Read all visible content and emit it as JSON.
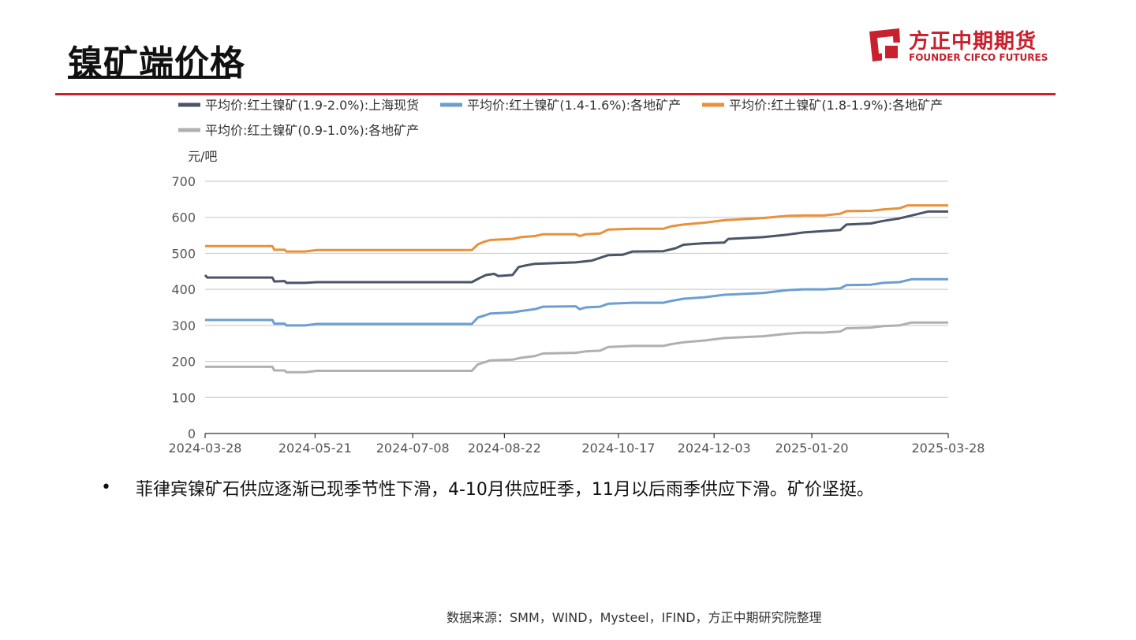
{
  "page": {
    "title": "镍矿端价格"
  },
  "logo": {
    "cn": "方正中期期货",
    "en": "FOUNDER CIFCO FUTURES",
    "color": "#c8202d"
  },
  "chart_data": {
    "type": "line",
    "ylabel": "元/吧",
    "ylim": [
      0,
      700
    ],
    "yticks": [
      0,
      100,
      200,
      300,
      400,
      500,
      600,
      700
    ],
    "xlim": [
      "2024-03-28",
      "2025-03-28"
    ],
    "xticks": [
      "2024-03-28",
      "2024-05-21",
      "2024-07-08",
      "2024-08-22",
      "2024-10-17",
      "2024-12-03",
      "2025-01-20",
      "2025-03-28"
    ],
    "grid": true,
    "legend": "top",
    "series": [
      {
        "name": "平均价:红土镍矿(1.9-2.0%):上海现货",
        "color": "#4a5568",
        "points": [
          [
            "2024-03-28",
            440
          ],
          [
            "2024-03-29",
            433
          ],
          [
            "2024-04-02",
            433
          ],
          [
            "2024-04-30",
            433
          ],
          [
            "2024-05-01",
            422
          ],
          [
            "2024-05-06",
            423
          ],
          [
            "2024-05-07",
            418
          ],
          [
            "2024-05-16",
            418
          ],
          [
            "2024-05-22",
            420
          ],
          [
            "2024-08-06",
            420
          ],
          [
            "2024-08-10",
            432
          ],
          [
            "2024-08-13",
            440
          ],
          [
            "2024-08-17",
            443
          ],
          [
            "2024-08-19",
            437
          ],
          [
            "2024-08-26",
            440
          ],
          [
            "2024-08-29",
            462
          ],
          [
            "2024-09-02",
            467
          ],
          [
            "2024-09-06",
            471
          ],
          [
            "2024-09-26",
            475
          ],
          [
            "2024-10-04",
            480
          ],
          [
            "2024-10-12",
            495
          ],
          [
            "2024-10-19",
            496
          ],
          [
            "2024-10-24",
            505
          ],
          [
            "2024-11-08",
            506
          ],
          [
            "2024-11-14",
            514
          ],
          [
            "2024-11-18",
            524
          ],
          [
            "2024-11-28",
            528
          ],
          [
            "2024-12-08",
            530
          ],
          [
            "2024-12-10",
            540
          ],
          [
            "2024-12-27",
            545
          ],
          [
            "2025-01-08",
            552
          ],
          [
            "2025-01-16",
            558
          ],
          [
            "2025-01-26",
            562
          ],
          [
            "2025-02-03",
            565
          ],
          [
            "2025-02-06",
            580
          ],
          [
            "2025-02-18",
            583
          ],
          [
            "2025-02-24",
            590
          ],
          [
            "2025-03-04",
            597
          ],
          [
            "2025-03-10",
            605
          ],
          [
            "2025-03-18",
            616
          ],
          [
            "2025-03-28",
            616
          ]
        ]
      },
      {
        "name": "平均价:红土镍矿(1.4-1.6%):各地矿产",
        "color": "#6b9fd1",
        "points": [
          [
            "2024-03-28",
            315
          ],
          [
            "2024-04-30",
            315
          ],
          [
            "2024-05-01",
            305
          ],
          [
            "2024-05-06",
            305
          ],
          [
            "2024-05-07",
            300
          ],
          [
            "2024-05-16",
            300
          ],
          [
            "2024-05-22",
            304
          ],
          [
            "2024-08-06",
            304
          ],
          [
            "2024-08-09",
            322
          ],
          [
            "2024-08-12",
            327
          ],
          [
            "2024-08-15",
            333
          ],
          [
            "2024-08-26",
            336
          ],
          [
            "2024-08-30",
            340
          ],
          [
            "2024-09-06",
            345
          ],
          [
            "2024-09-10",
            352
          ],
          [
            "2024-09-26",
            353
          ],
          [
            "2024-09-28",
            345
          ],
          [
            "2024-10-01",
            350
          ],
          [
            "2024-10-08",
            352
          ],
          [
            "2024-10-12",
            360
          ],
          [
            "2024-10-24",
            363
          ],
          [
            "2024-11-08",
            363
          ],
          [
            "2024-11-12",
            368
          ],
          [
            "2024-11-18",
            374
          ],
          [
            "2024-11-28",
            378
          ],
          [
            "2024-12-08",
            385
          ],
          [
            "2024-12-27",
            390
          ],
          [
            "2025-01-08",
            398
          ],
          [
            "2025-01-16",
            400
          ],
          [
            "2025-01-26",
            400
          ],
          [
            "2025-02-03",
            403
          ],
          [
            "2025-02-06",
            412
          ],
          [
            "2025-02-18",
            413
          ],
          [
            "2025-02-24",
            418
          ],
          [
            "2025-03-04",
            420
          ],
          [
            "2025-03-10",
            428
          ],
          [
            "2025-03-28",
            428
          ]
        ]
      },
      {
        "name": "平均价:红土镍矿(1.8-1.9%):各地矿产",
        "color": "#e8913c",
        "points": [
          [
            "2024-03-28",
            520
          ],
          [
            "2024-04-30",
            520
          ],
          [
            "2024-05-01",
            510
          ],
          [
            "2024-05-06",
            510
          ],
          [
            "2024-05-07",
            505
          ],
          [
            "2024-05-16",
            505
          ],
          [
            "2024-05-22",
            509
          ],
          [
            "2024-08-06",
            509
          ],
          [
            "2024-08-09",
            525
          ],
          [
            "2024-08-12",
            532
          ],
          [
            "2024-08-15",
            537
          ],
          [
            "2024-08-26",
            540
          ],
          [
            "2024-08-30",
            545
          ],
          [
            "2024-09-06",
            548
          ],
          [
            "2024-09-10",
            553
          ],
          [
            "2024-09-26",
            553
          ],
          [
            "2024-09-28",
            548
          ],
          [
            "2024-10-01",
            553
          ],
          [
            "2024-10-08",
            555
          ],
          [
            "2024-10-12",
            566
          ],
          [
            "2024-10-24",
            568
          ],
          [
            "2024-11-08",
            568
          ],
          [
            "2024-11-12",
            575
          ],
          [
            "2024-11-18",
            580
          ],
          [
            "2024-11-28",
            585
          ],
          [
            "2024-12-08",
            592
          ],
          [
            "2024-12-27",
            598
          ],
          [
            "2025-01-08",
            604
          ],
          [
            "2025-01-16",
            605
          ],
          [
            "2025-01-26",
            605
          ],
          [
            "2025-02-03",
            610
          ],
          [
            "2025-02-06",
            617
          ],
          [
            "2025-02-18",
            618
          ],
          [
            "2025-02-24",
            622
          ],
          [
            "2025-03-04",
            625
          ],
          [
            "2025-03-08",
            633
          ],
          [
            "2025-03-28",
            633
          ]
        ]
      },
      {
        "name": "平均价:红土镍矿(0.9-1.0%):各地矿产",
        "color": "#b0b0b0",
        "points": [
          [
            "2024-03-28",
            185
          ],
          [
            "2024-04-30",
            185
          ],
          [
            "2024-05-01",
            175
          ],
          [
            "2024-05-06",
            175
          ],
          [
            "2024-05-07",
            170
          ],
          [
            "2024-05-16",
            170
          ],
          [
            "2024-05-22",
            174
          ],
          [
            "2024-08-06",
            174
          ],
          [
            "2024-08-09",
            192
          ],
          [
            "2024-08-12",
            197
          ],
          [
            "2024-08-15",
            203
          ],
          [
            "2024-08-26",
            205
          ],
          [
            "2024-08-30",
            210
          ],
          [
            "2024-09-06",
            215
          ],
          [
            "2024-09-10",
            222
          ],
          [
            "2024-09-26",
            224
          ],
          [
            "2024-10-01",
            228
          ],
          [
            "2024-10-08",
            230
          ],
          [
            "2024-10-12",
            240
          ],
          [
            "2024-10-24",
            243
          ],
          [
            "2024-11-08",
            243
          ],
          [
            "2024-11-12",
            248
          ],
          [
            "2024-11-18",
            253
          ],
          [
            "2024-11-28",
            258
          ],
          [
            "2024-12-08",
            265
          ],
          [
            "2024-12-27",
            270
          ],
          [
            "2025-01-08",
            277
          ],
          [
            "2025-01-16",
            280
          ],
          [
            "2025-01-26",
            280
          ],
          [
            "2025-02-03",
            283
          ],
          [
            "2025-02-06",
            292
          ],
          [
            "2025-02-18",
            294
          ],
          [
            "2025-02-24",
            298
          ],
          [
            "2025-03-04",
            300
          ],
          [
            "2025-03-10",
            308
          ],
          [
            "2025-03-28",
            308
          ]
        ]
      }
    ]
  },
  "bullet": {
    "symbol": "•",
    "text": "菲律宾镍矿石供应逐渐已现季节性下滑，4-10月供应旺季，11月以后雨季供应下滑。矿价坚挺。"
  },
  "source": {
    "text": "数据来源：SMM，WIND，Mysteel，IFIND，方正中期研究院整理"
  }
}
